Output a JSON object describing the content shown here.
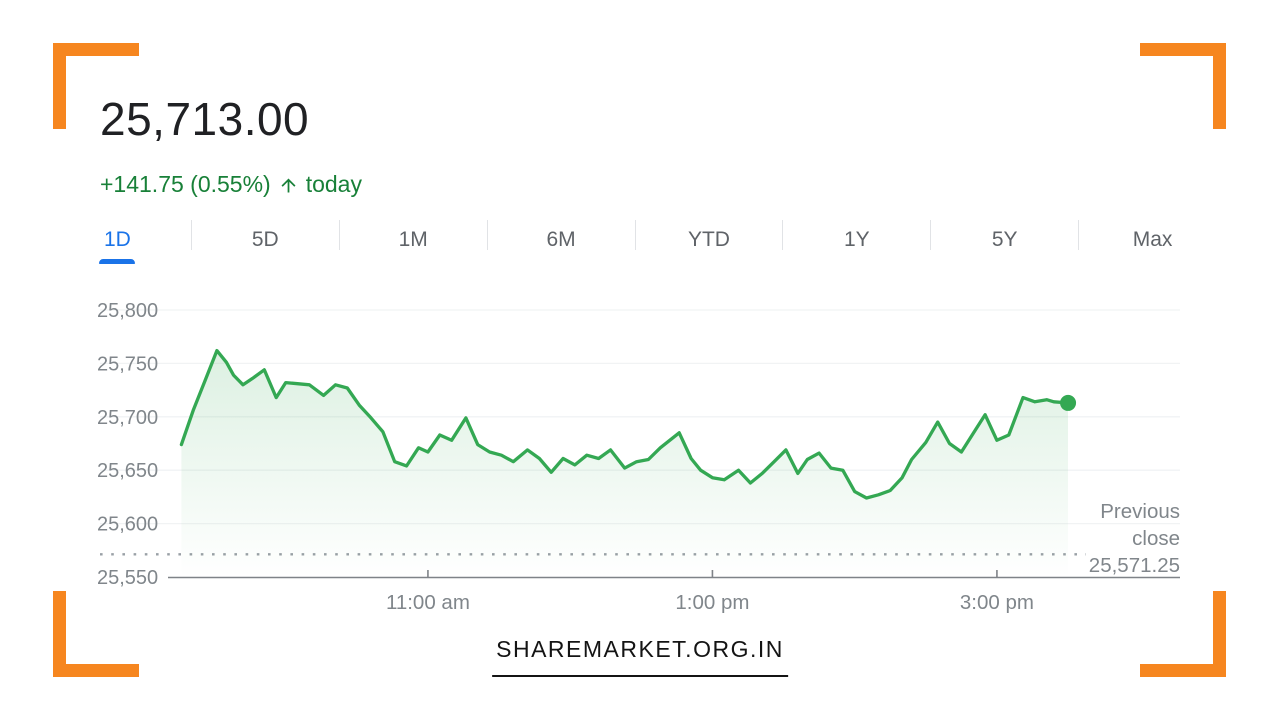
{
  "header": {
    "price": "25,713.00",
    "change": "+141.75 (0.55%)",
    "change_suffix": "today",
    "change_color": "#188038"
  },
  "tabs": {
    "items": [
      "1D",
      "5D",
      "1M",
      "6M",
      "YTD",
      "1Y",
      "5Y",
      "Max"
    ],
    "active": "1D"
  },
  "footer": {
    "brand": "SHAREMARKET.ORG.IN"
  },
  "colors": {
    "accent_orange": "#f6861f",
    "active_tab_blue": "#1a73e8",
    "line_green": "#34a853",
    "change_green": "#188038",
    "axis_gray": "#80868b"
  },
  "chart_data": {
    "type": "line",
    "title": "Intraday index price (1D)",
    "x_unit": "minutes since 9:15 am",
    "session_start": "9:15 am",
    "session_end": "3:30 pm",
    "x_ticks": [
      {
        "minute": 105,
        "label": "11:00 am"
      },
      {
        "minute": 225,
        "label": "1:00 pm"
      },
      {
        "minute": 345,
        "label": "3:00 pm"
      }
    ],
    "y_ticks": [
      {
        "value": 25550,
        "label": "25,550"
      },
      {
        "value": 25600,
        "label": "25,600"
      },
      {
        "value": 25650,
        "label": "25,650"
      },
      {
        "value": 25700,
        "label": "25,700"
      },
      {
        "value": 25750,
        "label": "25,750"
      },
      {
        "value": 25800,
        "label": "25,800"
      }
    ],
    "ylim": [
      25550,
      25810
    ],
    "grid": true,
    "previous_close": {
      "value": 25571.25,
      "label_lines": [
        "Previous",
        "close",
        "25,571.25"
      ]
    },
    "last_value": 25713,
    "points": [
      [
        1,
        25674
      ],
      [
        6,
        25706
      ],
      [
        11,
        25734
      ],
      [
        16,
        25762
      ],
      [
        20,
        25751
      ],
      [
        23,
        25739
      ],
      [
        27,
        25730
      ],
      [
        31,
        25736
      ],
      [
        36,
        25744
      ],
      [
        41,
        25718
      ],
      [
        45,
        25732
      ],
      [
        50,
        25731
      ],
      [
        55,
        25730
      ],
      [
        61,
        25720
      ],
      [
        66,
        25730
      ],
      [
        71,
        25727
      ],
      [
        76,
        25711
      ],
      [
        81,
        25699
      ],
      [
        86,
        25686
      ],
      [
        91,
        25658
      ],
      [
        96,
        25654
      ],
      [
        101,
        25671
      ],
      [
        105,
        25667
      ],
      [
        110,
        25683
      ],
      [
        115,
        25678
      ],
      [
        121,
        25699
      ],
      [
        126,
        25674
      ],
      [
        131,
        25667
      ],
      [
        136,
        25664
      ],
      [
        141,
        25658
      ],
      [
        147,
        25669
      ],
      [
        152,
        25661
      ],
      [
        157,
        25648
      ],
      [
        162,
        25661
      ],
      [
        167,
        25655
      ],
      [
        172,
        25664
      ],
      [
        177,
        25661
      ],
      [
        182,
        25669
      ],
      [
        188,
        25652
      ],
      [
        193,
        25658
      ],
      [
        198,
        25660
      ],
      [
        203,
        25671
      ],
      [
        211,
        25685
      ],
      [
        216,
        25661
      ],
      [
        220,
        25650
      ],
      [
        225,
        25643
      ],
      [
        230,
        25641
      ],
      [
        236,
        25650
      ],
      [
        241,
        25638
      ],
      [
        246,
        25647
      ],
      [
        251,
        25658
      ],
      [
        256,
        25669
      ],
      [
        261,
        25647
      ],
      [
        265,
        25660
      ],
      [
        270,
        25666
      ],
      [
        275,
        25652
      ],
      [
        280,
        25650
      ],
      [
        285,
        25630
      ],
      [
        290,
        25624
      ],
      [
        295,
        25627
      ],
      [
        300,
        25631
      ],
      [
        305,
        25643
      ],
      [
        309,
        25660
      ],
      [
        315,
        25676
      ],
      [
        320,
        25695
      ],
      [
        325,
        25675
      ],
      [
        330,
        25667
      ],
      [
        336,
        25688
      ],
      [
        340,
        25702
      ],
      [
        345,
        25678
      ],
      [
        350,
        25683
      ],
      [
        356,
        25718
      ],
      [
        361,
        25714
      ],
      [
        366,
        25716
      ],
      [
        369,
        25714
      ],
      [
        375,
        25713
      ]
    ]
  }
}
